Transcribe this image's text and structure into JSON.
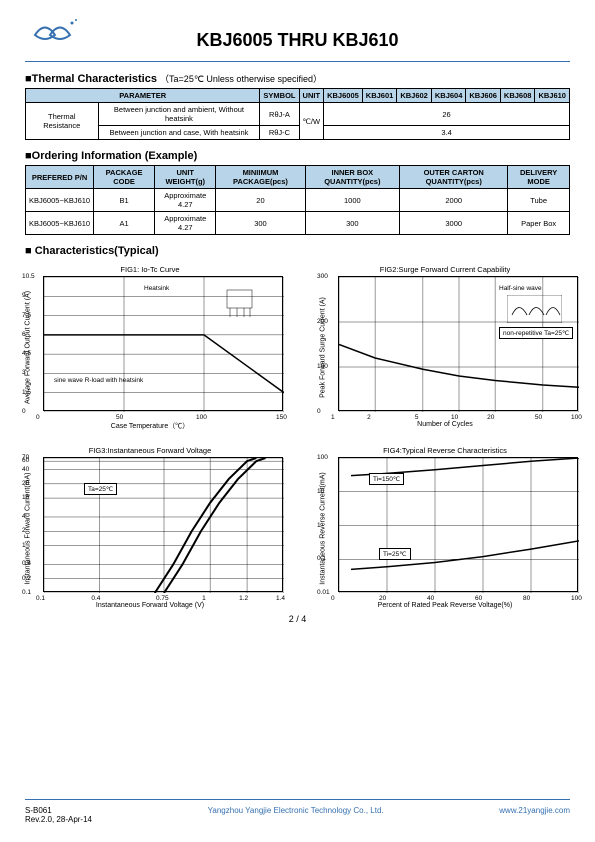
{
  "logo_svg_color": "#3670b0",
  "header": {
    "title": "KBJ6005 THRU KBJ610"
  },
  "thermal": {
    "section_title": "■Thermal Characteristics",
    "subtitle": "（Ta=25℃ Unless otherwise specified）",
    "headers": [
      "PARAMETER",
      "SYMBOL",
      "UNIT",
      "KBJ6005",
      "KBJ601",
      "KBJ602",
      "KBJ604",
      "KBJ606",
      "KBJ608",
      "KBJ610"
    ],
    "group_label": "Thermal Resistance",
    "rows": [
      {
        "desc": "Between junction and ambient, Without heatsink",
        "symbol": "RθJ-A",
        "val": "26"
      },
      {
        "desc": "Between junction and case, With heatsink",
        "symbol": "RθJ-C",
        "val": "3.4"
      }
    ],
    "unit": "℃/W"
  },
  "ordering": {
    "section_title": "■Ordering Information (Example)",
    "headers": [
      "PREFERED P/N",
      "PACKAGE CODE",
      "UNIT WEIGHT(g)",
      "MINIIMUM PACKAGE(pcs)",
      "INNER BOX QUANTITY(pcs)",
      "OUTER CARTON QUANTITY(pcs)",
      "DELIVERY MODE"
    ],
    "rows": [
      [
        "KBJ6005~KBJ610",
        "B1",
        "Approximate 4.27",
        "20",
        "1000",
        "2000",
        "Tube"
      ],
      [
        "KBJ6005~KBJ610",
        "A1",
        "Approximate 4.27",
        "300",
        "300",
        "3000",
        "Paper Box"
      ]
    ]
  },
  "charts_title": "■ Characteristics(Typical)",
  "fig1": {
    "title": "FIG1: Io-Tc Curve",
    "ylabel": "Average Forward Output Current (A)",
    "xlabel": "Case Temperature（℃）",
    "ylim": [
      0,
      10.5
    ],
    "yticks": [
      0,
      1.5,
      3,
      4.5,
      6,
      7.5,
      9,
      10.5
    ],
    "xlim": [
      0,
      150
    ],
    "xticks": [
      0,
      50,
      100,
      150
    ],
    "annotation1": "Heatsink",
    "annotation2": "sine wave R-load with heatsink",
    "line": [
      [
        0,
        6
      ],
      [
        100,
        6
      ],
      [
        150,
        1.5
      ]
    ],
    "line_color": "#000",
    "line_width": 1.5
  },
  "fig2": {
    "title": "FIG2:Surge Forward Current Capability",
    "ylabel": "Peak Forward Surge Current (A)",
    "xlabel": "Number of Cycles",
    "ylim": [
      0,
      300
    ],
    "yticks": [
      0,
      100,
      200,
      300
    ],
    "xlim": [
      1,
      100
    ],
    "xticks": [
      1,
      2,
      5,
      10,
      20,
      50,
      100
    ],
    "xscale": "log",
    "annotation1": "Half-sine wave",
    "annotation2": "non-repetitive Ta=25℃",
    "line": [
      [
        1,
        150
      ],
      [
        2,
        120
      ],
      [
        5,
        95
      ],
      [
        10,
        80
      ],
      [
        20,
        70
      ],
      [
        50,
        60
      ],
      [
        100,
        55
      ]
    ],
    "line_color": "#000",
    "line_width": 1.5
  },
  "fig3": {
    "title": "FIG3:Instantaneous Forward Voltage",
    "ylabel": "Instantaneous Forward Current(mA)",
    "xlabel": "Instantaneous Forward Voltage (V)",
    "ylim": [
      0.1,
      70
    ],
    "yticks": [
      0.1,
      0.2,
      0.4,
      1,
      2,
      4,
      10,
      20,
      40,
      60,
      70
    ],
    "yscale": "log",
    "xlim": [
      0.1,
      1.4
    ],
    "xticks": [
      0.1,
      0.4,
      0.75,
      1.0,
      1.2,
      1.4
    ],
    "annotation": "Ta=25℃",
    "line1": [
      [
        0.7,
        0.1
      ],
      [
        0.8,
        0.4
      ],
      [
        0.9,
        2
      ],
      [
        1.0,
        8
      ],
      [
        1.1,
        25
      ],
      [
        1.2,
        60
      ],
      [
        1.25,
        70
      ]
    ],
    "line2": [
      [
        0.75,
        0.1
      ],
      [
        0.85,
        0.4
      ],
      [
        0.95,
        2
      ],
      [
        1.05,
        8
      ],
      [
        1.15,
        25
      ],
      [
        1.25,
        60
      ],
      [
        1.3,
        70
      ]
    ],
    "line_color": "#000",
    "line_width": 2
  },
  "fig4": {
    "title": "FIG4:Typical Reverse Characteristics",
    "ylabel": "Instantaneous Reverse Current(mA)",
    "xlabel": "Percent of Rated Peak Reverse Voltage(%)",
    "ylim": [
      0.01,
      100
    ],
    "yticks": [
      0.01,
      0.1,
      1,
      10,
      100
    ],
    "yscale": "log",
    "xlim": [
      0,
      100
    ],
    "xticks": [
      0,
      20,
      40,
      60,
      80,
      100
    ],
    "annotation1": "Ti=150℃",
    "annotation2": "Ti=25℃",
    "line1": [
      [
        5,
        30
      ],
      [
        20,
        35
      ],
      [
        40,
        45
      ],
      [
        60,
        60
      ],
      [
        80,
        80
      ],
      [
        100,
        100
      ]
    ],
    "line2": [
      [
        5,
        0.05
      ],
      [
        20,
        0.06
      ],
      [
        40,
        0.08
      ],
      [
        60,
        0.12
      ],
      [
        80,
        0.2
      ],
      [
        100,
        0.35
      ]
    ],
    "line_color": "#000",
    "line_width": 1.5
  },
  "footer": {
    "page": "2 / 4",
    "left1": "S-B061",
    "left2": "Rev.2.0, 28-Apr-14",
    "center": "Yangzhou Yangjie Electronic Technology Co., Ltd.",
    "right": "www.21yangjie.com"
  },
  "colors": {
    "header_bg": "#b8d4e8",
    "line": "#3670b0",
    "text": "#000000"
  }
}
